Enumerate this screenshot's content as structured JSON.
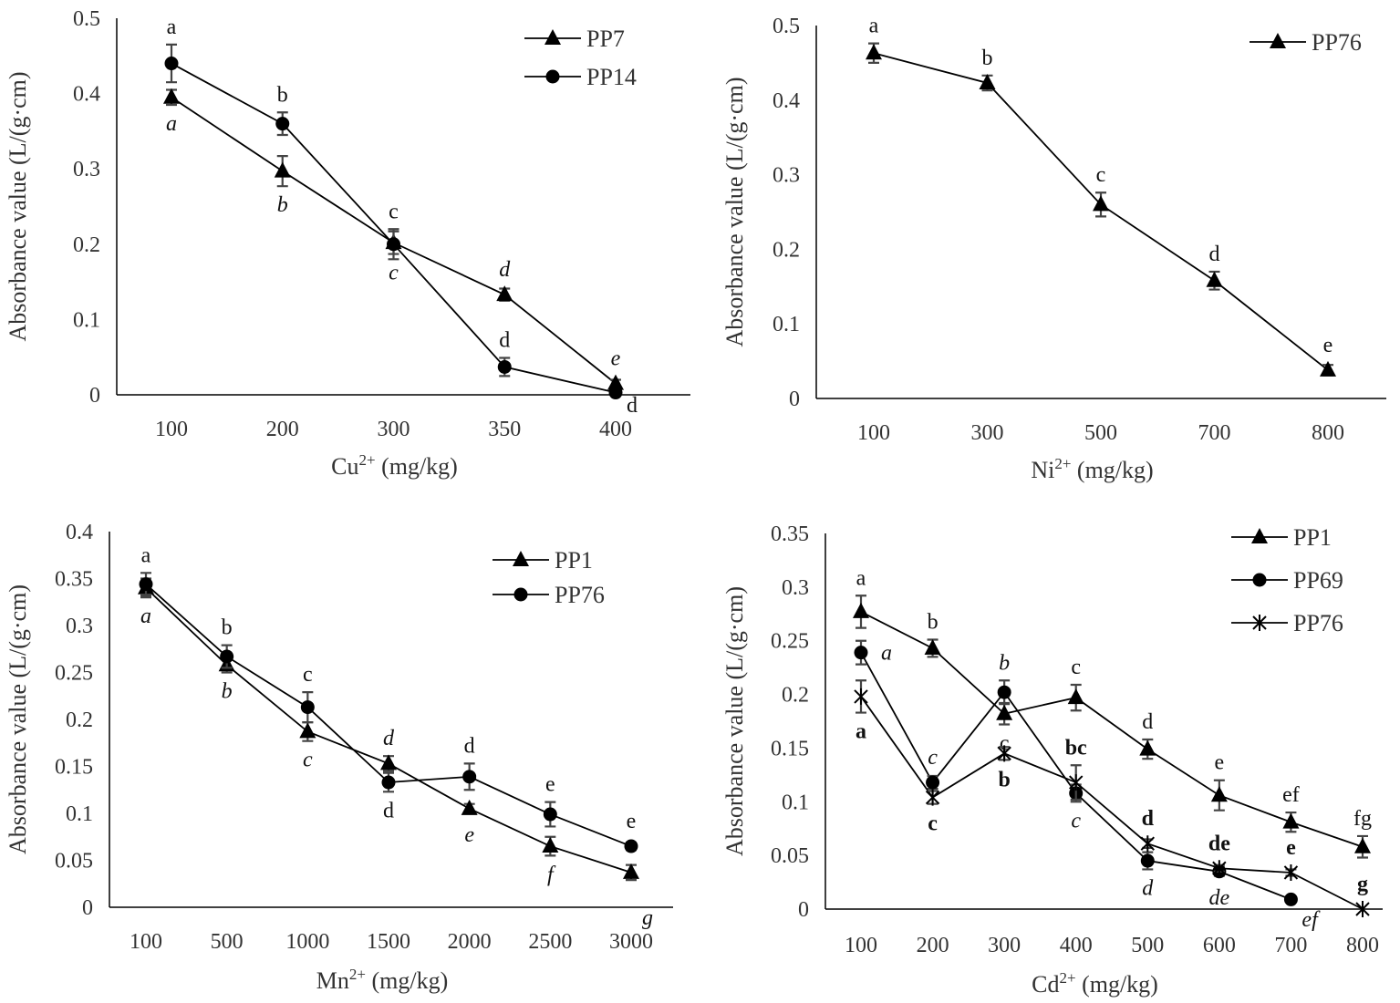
{
  "chart_data": [
    {
      "type": "line",
      "id": "cu",
      "xlabel": {
        "ion": "Cu",
        "charge": "2+",
        "unit": " (mg/kg)"
      },
      "ylabel": "Absorbance value (L/(g·cm)",
      "categories": [
        "100",
        "200",
        "300",
        "350",
        "400"
      ],
      "ylim": [
        0,
        0.5
      ],
      "yticks": [
        "0",
        "0.1",
        "0.2",
        "0.3",
        "0.4",
        "0.5"
      ],
      "ystep": 0.1,
      "legend": "top-right",
      "series": [
        {
          "name": "PP7",
          "marker": "triangle",
          "values": [
            0.395,
            0.297,
            0.202,
            0.133,
            0.015
          ],
          "errors": [
            0.01,
            0.02,
            0.015,
            0.008,
            0.005
          ],
          "letters": [
            {
              "t": "a",
              "s": "italic",
              "p": "below"
            },
            {
              "t": "b",
              "s": "italic",
              "p": "below"
            },
            {
              "t": "c",
              "s": "italic",
              "p": "below"
            },
            {
              "t": "d",
              "s": "italic",
              "p": "above"
            },
            {
              "t": "e",
              "s": "italic",
              "p": "above"
            }
          ]
        },
        {
          "name": "PP14",
          "marker": "circle",
          "values": [
            0.44,
            0.36,
            0.2,
            0.037,
            0.003
          ],
          "errors": [
            0.025,
            0.015,
            0.02,
            0.012,
            0.003
          ],
          "letters": [
            {
              "t": "a",
              "s": "normal",
              "p": "above"
            },
            {
              "t": "b",
              "s": "normal",
              "p": "above"
            },
            {
              "t": "c",
              "s": "normal",
              "p": "above"
            },
            {
              "t": "d",
              "s": "normal",
              "p": "above"
            },
            {
              "t": "d",
              "s": "normal",
              "p": "below"
            }
          ]
        }
      ]
    },
    {
      "type": "line",
      "id": "ni",
      "xlabel": {
        "ion": "Ni",
        "charge": "2+",
        "unit": " (mg/kg)"
      },
      "ylabel": "Absorbance value (L/(g·cm)",
      "categories": [
        "100",
        "300",
        "500",
        "700",
        "800"
      ],
      "ylim": [
        0,
        0.5
      ],
      "yticks": [
        "0",
        "0.1",
        "0.2",
        "0.3",
        "0.4",
        "0.5"
      ],
      "ystep": 0.1,
      "legend": "top-right",
      "series": [
        {
          "name": "PP76",
          "marker": "triangle",
          "values": [
            0.463,
            0.423,
            0.26,
            0.158,
            0.038
          ],
          "errors": [
            0.013,
            0.01,
            0.016,
            0.012,
            0.007
          ],
          "letters": [
            {
              "t": "a",
              "s": "normal",
              "p": "above"
            },
            {
              "t": "b",
              "s": "normal",
              "p": "above"
            },
            {
              "t": "c",
              "s": "normal",
              "p": "above"
            },
            {
              "t": "d",
              "s": "normal",
              "p": "above"
            },
            {
              "t": "e",
              "s": "normal",
              "p": "above"
            }
          ]
        }
      ]
    },
    {
      "type": "line",
      "id": "mn",
      "xlabel": {
        "ion": "Mn",
        "charge": "2+",
        "unit": " (mg/kg)"
      },
      "ylabel": "Absorbance value (L/(g·cm)",
      "categories": [
        "100",
        "500",
        "1000",
        "1500",
        "2000",
        "2500",
        "3000"
      ],
      "ylim": [
        0,
        0.4
      ],
      "yticks": [
        "0",
        "0.05",
        "0.1",
        "0.15",
        "0.2",
        "0.25",
        "0.3",
        "0.35",
        "0.4"
      ],
      "ystep": 0.05,
      "legend": "top-right",
      "series": [
        {
          "name": "PP1",
          "marker": "triangle",
          "values": [
            0.34,
            0.258,
            0.187,
            0.153,
            0.105,
            0.065,
            0.037
          ],
          "errors": [
            0.01,
            0.008,
            0.01,
            0.008,
            0.005,
            0.01,
            0.008
          ],
          "letters": [
            {
              "t": "a",
              "s": "italic",
              "p": "below"
            },
            {
              "t": "b",
              "s": "italic",
              "p": "below"
            },
            {
              "t": "c",
              "s": "italic",
              "p": "below"
            },
            {
              "t": "d",
              "s": "italic",
              "p": "above"
            },
            {
              "t": "e",
              "s": "italic",
              "p": "below"
            },
            {
              "t": "f",
              "s": "italic",
              "p": "below"
            },
            {
              "t": "g",
              "s": "italic",
              "p": "below"
            }
          ]
        },
        {
          "name": "PP76",
          "marker": "circle",
          "values": [
            0.344,
            0.267,
            0.213,
            0.133,
            0.139,
            0.099,
            0.065
          ],
          "errors": [
            0.012,
            0.012,
            0.016,
            0.01,
            0.014,
            0.013,
            0.004
          ],
          "letters": [
            {
              "t": "a",
              "s": "normal",
              "p": "above"
            },
            {
              "t": "b",
              "s": "normal",
              "p": "above"
            },
            {
              "t": "c",
              "s": "normal",
              "p": "above"
            },
            {
              "t": "d",
              "s": "normal",
              "p": "below"
            },
            {
              "t": "d",
              "s": "normal",
              "p": "above"
            },
            {
              "t": "e",
              "s": "normal",
              "p": "above"
            },
            {
              "t": "e",
              "s": "normal",
              "p": "above"
            }
          ]
        }
      ]
    },
    {
      "type": "line",
      "id": "cd",
      "xlabel": {
        "ion": "Cd",
        "charge": "2+",
        "unit": " (mg/kg)"
      },
      "ylabel": "Absorbance value (L/(g·cm)",
      "categories": [
        "100",
        "200",
        "300",
        "400",
        "500",
        "600",
        "700",
        "800"
      ],
      "ylim": [
        0,
        0.35
      ],
      "yticks": [
        "0",
        "0.05",
        "0.1",
        "0.15",
        "0.2",
        "0.25",
        "0.3",
        "0.35"
      ],
      "ystep": 0.05,
      "legend": "top-right",
      "series": [
        {
          "name": "PP1",
          "marker": "triangle",
          "values": [
            0.277,
            0.243,
            0.182,
            0.197,
            0.149,
            0.106,
            0.081,
            0.058
          ],
          "errors": [
            0.015,
            0.008,
            0.01,
            0.012,
            0.009,
            0.014,
            0.009,
            0.01
          ],
          "letters": [
            {
              "t": "a",
              "s": "normal",
              "p": "above"
            },
            {
              "t": "b",
              "s": "normal",
              "p": "above"
            },
            {
              "t": "c",
              "s": "normal",
              "p": "below"
            },
            {
              "t": "c",
              "s": "normal",
              "p": "above"
            },
            {
              "t": "d",
              "s": "normal",
              "p": "above"
            },
            {
              "t": "e",
              "s": "normal",
              "p": "above"
            },
            {
              "t": "ef",
              "s": "normal",
              "p": "above"
            },
            {
              "t": "fg",
              "s": "normal",
              "p": "above"
            }
          ]
        },
        {
          "name": "PP69",
          "marker": "circle",
          "values": [
            0.239,
            0.118,
            0.202,
            0.108,
            0.045,
            0.035,
            0.009,
            null
          ],
          "errors": [
            0.011,
            0.006,
            0.011,
            0.008,
            0.008,
            0.004,
            0.002,
            0
          ],
          "letters": [
            {
              "t": "a",
              "s": "italic",
              "p": "right"
            },
            {
              "t": "c",
              "s": "italic",
              "p": "above"
            },
            {
              "t": "b",
              "s": "italic",
              "p": "above"
            },
            {
              "t": "c",
              "s": "italic",
              "p": "below"
            },
            {
              "t": "d",
              "s": "italic",
              "p": "below"
            },
            {
              "t": "de",
              "s": "italic",
              "p": "below"
            },
            {
              "t": "ef",
              "s": "italic",
              "p": "below"
            },
            null
          ]
        },
        {
          "name": "PP76",
          "marker": "star",
          "values": [
            0.198,
            0.104,
            0.145,
            0.118,
            0.061,
            0.038,
            0.034,
            0.0
          ],
          "errors": [
            0.015,
            0.006,
            0.006,
            0.016,
            0.004,
            0.003,
            0.003,
            0
          ],
          "letters": [
            {
              "t": "a",
              "s": "bold",
              "p": "below"
            },
            {
              "t": "c",
              "s": "bold",
              "p": "below"
            },
            {
              "t": "b",
              "s": "bold",
              "p": "below"
            },
            {
              "t": "bc",
              "s": "bold",
              "p": "above"
            },
            {
              "t": "d",
              "s": "bold",
              "p": "above"
            },
            {
              "t": "de",
              "s": "bold",
              "p": "above"
            },
            {
              "t": "e",
              "s": "bold",
              "p": "above"
            },
            {
              "t": "g",
              "s": "bold",
              "p": "above"
            }
          ]
        }
      ]
    }
  ]
}
